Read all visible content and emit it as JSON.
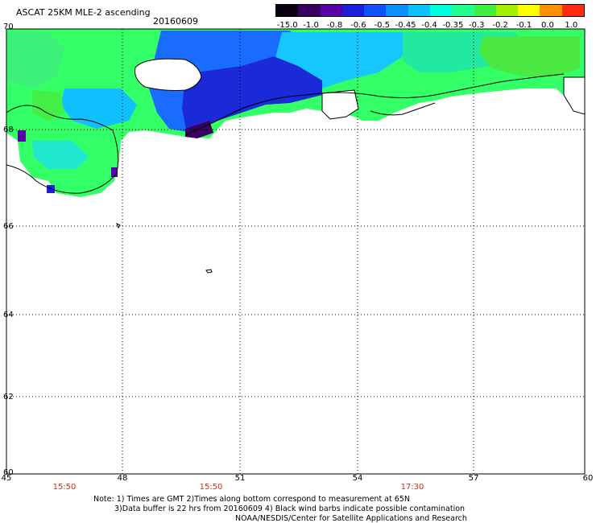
{
  "header": {
    "title": "ASCAT 25KM MLE-2 ascending",
    "date": "20160609"
  },
  "colorbar": {
    "labels": [
      "-15.0",
      "-1.0",
      "-0.8",
      "-0.6",
      "-0.5",
      "-0.45",
      "-0.4",
      "-0.35",
      "-0.3",
      "-0.2",
      "-0.1",
      "0.0",
      "1.0"
    ],
    "colors": [
      "#0a0010",
      "#3a0060",
      "#5a00a8",
      "#1a20d8",
      "#1050ff",
      "#0a90ff",
      "#10c0ff",
      "#00ffdf",
      "#20ff90",
      "#40f040",
      "#a0f000",
      "#ffff00",
      "#ff9000",
      "#ff2a10"
    ]
  },
  "axes": {
    "lat_labels": [
      "70",
      "68",
      "66",
      "64",
      "62",
      "60"
    ],
    "lon_labels": [
      "45",
      "48",
      "51",
      "54",
      "57",
      "60"
    ],
    "grid": "dotted"
  },
  "times": [
    "15:50",
    "15:50",
    "17:30"
  ],
  "notes": {
    "line1": "Note: 1) Times are GMT 2)Times along bottom correspond to measurement at 65N",
    "line2": "3)Data buffer is 22 hrs from 20160609 4) Black wind barbs indicate possible contamination",
    "line3": "NOAA/NESDIS/Center for Satellite Applications and Research"
  }
}
